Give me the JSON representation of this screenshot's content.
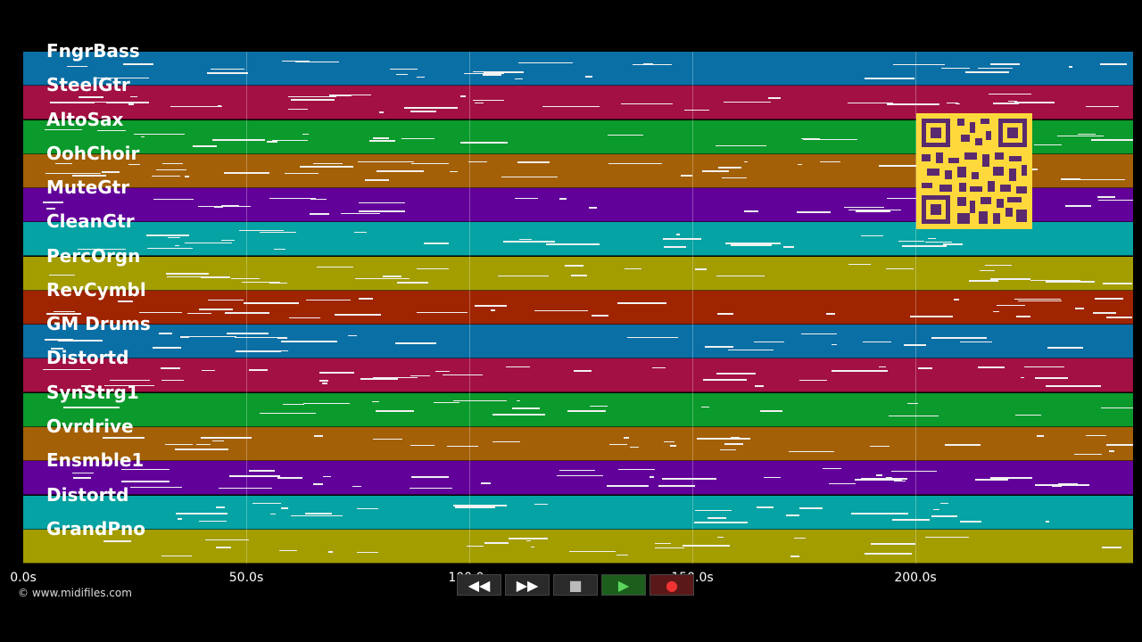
{
  "tracks": [
    {
      "name": "FngrBass",
      "color": "#0a6fa5"
    },
    {
      "name": "SteelGtr",
      "color": "#a31043"
    },
    {
      "name": "AltoSax",
      "color": "#0b9a2c"
    },
    {
      "name": "OohChoir",
      "color": "#a36006"
    },
    {
      "name": "MuteGtr",
      "color": "#62009a"
    },
    {
      "name": "CleanGtr",
      "color": "#05a3a3"
    },
    {
      "name": "PercOrgn",
      "color": "#a39d00"
    },
    {
      "name": "RevCymbl",
      "color": "#9f2400"
    },
    {
      "name": "GM Drums",
      "color": "#0a6fa5"
    },
    {
      "name": "Distortd",
      "color": "#a31043"
    },
    {
      "name": "SynStrg1",
      "color": "#0b9a2c"
    },
    {
      "name": "Ovrdrive",
      "color": "#a36006"
    },
    {
      "name": "Ensmble1",
      "color": "#62009a"
    },
    {
      "name": "Distortd",
      "color": "#05a3a3"
    },
    {
      "name": "GrandPno",
      "color": "#a39d00"
    }
  ],
  "timeline": {
    "ticks": [
      "0.0s",
      "50.0s",
      "100.0s",
      "150.0s",
      "200.0s"
    ],
    "tick_seconds": [
      0,
      50,
      100,
      150,
      200
    ],
    "max_seconds": 248.8
  },
  "copyright": "© www.midifiles.com",
  "transport": {
    "rewind": "◀◀",
    "forward": "▶▶",
    "stop": "■",
    "play": "▶",
    "record": "●"
  },
  "qr_code": {
    "icon": "qr-code-icon",
    "color": "#ffd93b"
  }
}
